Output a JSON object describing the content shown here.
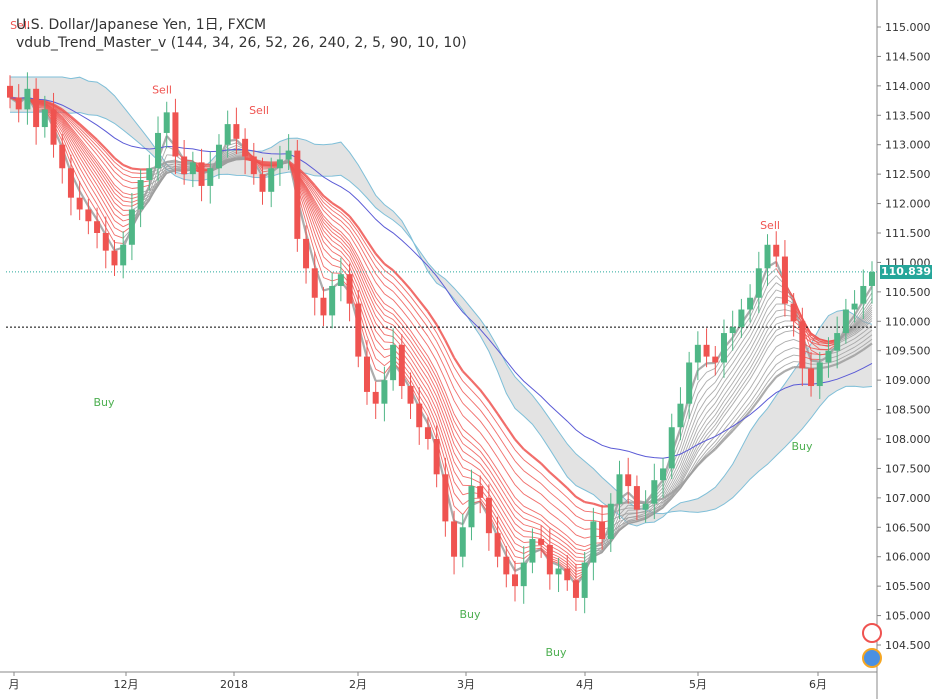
{
  "chart_data": {
    "type": "candlestick",
    "title": "U.S. Dollar/Japanese Yen, 1日, FXCM",
    "subtitle": "vdub_Trend_Master_v (144, 34, 26, 52, 26, 240, 2, 5, 90, 10, 10)",
    "ylim": [
      104.0,
      115.3
    ],
    "yticks": [
      "115.000",
      "114.500",
      "114.000",
      "113.500",
      "113.000",
      "112.500",
      "112.000",
      "111.500",
      "111.000",
      "110.500",
      "110.000",
      "109.500",
      "109.000",
      "108.500",
      "108.000",
      "107.500",
      "107.000",
      "106.500",
      "106.000",
      "105.500",
      "105.000",
      "104.500"
    ],
    "ytick_values": [
      115.0,
      114.5,
      114.0,
      113.5,
      113.0,
      112.5,
      112.0,
      111.5,
      111.0,
      110.5,
      110.0,
      109.5,
      109.0,
      108.5,
      108.0,
      107.5,
      107.0,
      106.5,
      106.0,
      105.5,
      105.0,
      104.5
    ],
    "xtick_labels": [
      "月",
      "12月",
      "2018",
      "2月",
      "3月",
      "4月",
      "5月",
      "6月"
    ],
    "last_price": "110.839",
    "last_price_value": 110.839,
    "hline_value": 109.9,
    "colors": {
      "up": "#4fb686",
      "down": "#ef5350",
      "ribbon_red": "#ef5350",
      "ribbon_gray": "#9e9e9e",
      "cloud_fill": "#d9d9d9",
      "cloud_line": "#7fbfd8",
      "sma": "#5b5bd6",
      "price_label_bg": "#26a69a"
    },
    "signals": [
      {
        "label": "Sell",
        "value": 114.9,
        "color": "#ef5350"
      },
      {
        "label": "Sell",
        "value": 113.8,
        "color": "#ef5350"
      },
      {
        "label": "Sell",
        "value": 113.45,
        "color": "#ef5350"
      },
      {
        "label": "Buy",
        "value": 108.8,
        "color": "#4caf50"
      },
      {
        "label": "Buy",
        "value": 105.2,
        "color": "#4caf50"
      },
      {
        "label": "Buy",
        "value": 104.55,
        "color": "#4caf50"
      },
      {
        "label": "Sell",
        "value": 111.5,
        "color": "#ef5350"
      },
      {
        "label": "Buy",
        "value": 108.05,
        "color": "#4caf50"
      }
    ],
    "close_path": [
      113.8,
      113.6,
      113.95,
      113.3,
      113.6,
      113.0,
      112.6,
      112.1,
      111.9,
      111.7,
      111.5,
      111.2,
      110.95,
      111.3,
      111.9,
      112.4,
      112.6,
      113.2,
      113.55,
      112.8,
      112.5,
      112.7,
      112.3,
      112.6,
      113.0,
      113.35,
      113.1,
      112.8,
      112.5,
      112.2,
      112.6,
      112.75,
      112.9,
      111.4,
      110.9,
      110.4,
      110.1,
      110.6,
      110.8,
      110.3,
      109.4,
      108.8,
      108.6,
      109.0,
      109.6,
      108.9,
      108.6,
      108.2,
      108.0,
      107.4,
      106.6,
      106.0,
      106.5,
      107.2,
      107.0,
      106.4,
      106.0,
      105.7,
      105.5,
      105.9,
      106.3,
      106.2,
      105.7,
      105.8,
      105.6,
      105.3,
      105.9,
      106.6,
      106.3,
      106.9,
      107.4,
      107.2,
      106.8,
      106.9,
      107.3,
      107.5,
      108.2,
      108.6,
      109.3,
      109.6,
      109.4,
      109.3,
      109.8,
      109.9,
      110.2,
      110.4,
      110.9,
      111.3,
      111.1,
      110.3,
      110.0,
      109.2,
      108.9,
      109.3,
      109.5,
      109.8,
      110.2,
      110.3,
      110.6,
      110.84
    ]
  }
}
